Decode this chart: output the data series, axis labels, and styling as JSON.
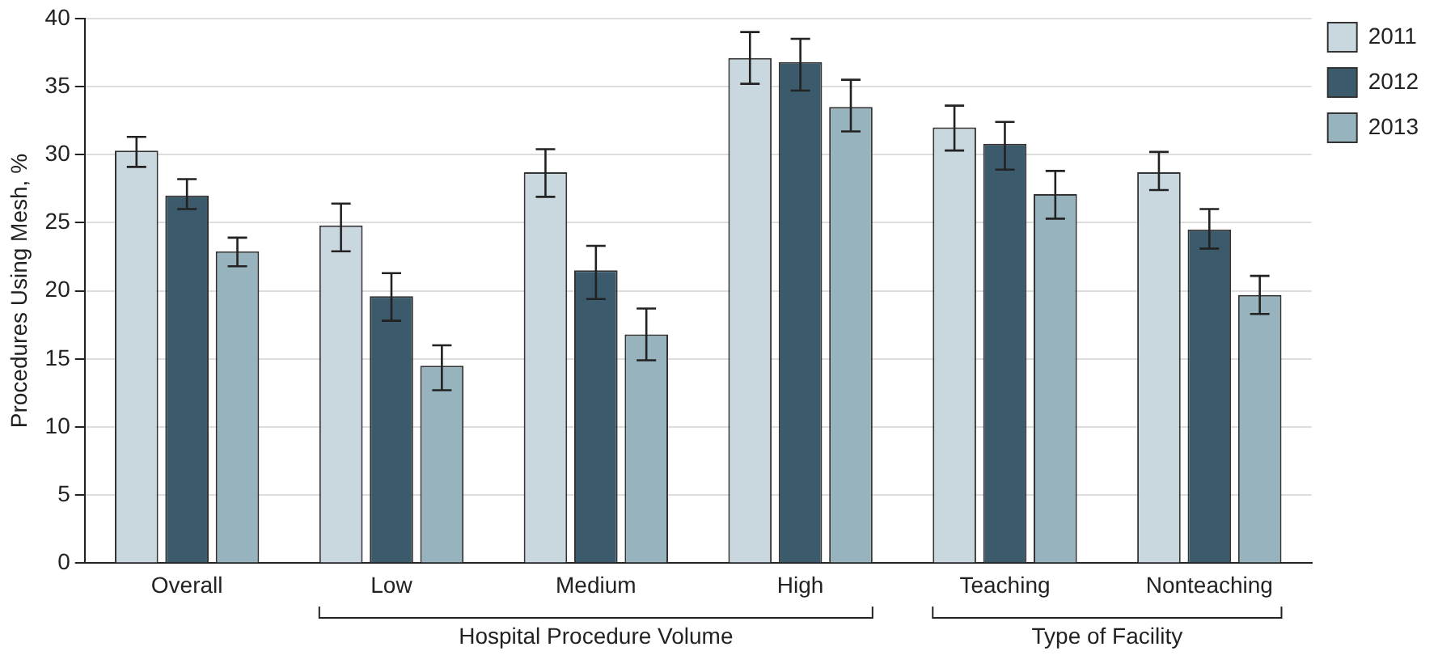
{
  "chart_data": {
    "type": "bar",
    "ylabel": "Procedures Using Mesh, %",
    "categories": [
      "Overall",
      "Low",
      "Medium",
      "High",
      "Teaching",
      "Nonteaching"
    ],
    "series": [
      {
        "name": "2011",
        "color": "#c9d8df",
        "values": [
          30.3,
          24.8,
          28.7,
          37.1,
          32.0,
          28.7
        ],
        "errors": [
          [
            29.1,
            31.3
          ],
          [
            22.9,
            26.4
          ],
          [
            26.9,
            30.4
          ],
          [
            35.2,
            39.0
          ],
          [
            30.3,
            33.6
          ],
          [
            27.4,
            30.2
          ]
        ]
      },
      {
        "name": "2012",
        "color": "#3b5a6b",
        "values": [
          27.0,
          19.6,
          21.5,
          36.8,
          30.8,
          24.5
        ],
        "errors": [
          [
            26.0,
            28.2
          ],
          [
            17.8,
            21.3
          ],
          [
            19.4,
            23.3
          ],
          [
            34.7,
            38.5
          ],
          [
            28.9,
            32.4
          ],
          [
            23.1,
            26.0
          ]
        ]
      },
      {
        "name": "2013",
        "color": "#97b3bd",
        "values": [
          22.9,
          14.5,
          16.8,
          33.5,
          27.1,
          19.7
        ],
        "errors": [
          [
            21.8,
            23.9
          ],
          [
            12.7,
            16.0
          ],
          [
            14.9,
            18.7
          ],
          [
            31.7,
            35.5
          ],
          [
            25.3,
            28.8
          ],
          [
            18.3,
            21.1
          ]
        ]
      }
    ],
    "ylim": [
      0,
      40
    ],
    "yticks": [
      0,
      5,
      10,
      15,
      20,
      25,
      30,
      35,
      40
    ],
    "grid": "y",
    "legend": "top right",
    "annotations": [
      "Hospital Procedure Volume",
      "Type of Facility"
    ]
  }
}
